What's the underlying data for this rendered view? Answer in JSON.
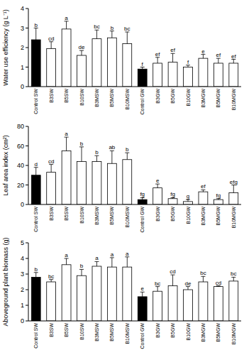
{
  "chart_data": [
    {
      "type": "bar",
      "y_label": "Water use efficiency (g L⁻¹)",
      "categories": [
        "Control SW",
        "B3SW",
        "B5SW",
        "B10SW",
        "B3MSW",
        "B5MSW",
        "B10MSW",
        "Control GW",
        "B3GW",
        "B5GW",
        "B10GW",
        "B3MGW",
        "B5MGW",
        "B10MGW"
      ],
      "values": [
        2.4,
        1.95,
        2.95,
        1.6,
        2.45,
        2.5,
        2.2,
        0.9,
        1.2,
        1.25,
        1.0,
        1.45,
        1.2,
        1.2
      ],
      "errors": [
        0.6,
        0.35,
        0.4,
        0.25,
        0.45,
        0.35,
        0.6,
        0.1,
        0.3,
        0.45,
        0.1,
        0.2,
        0.25,
        0.2
      ],
      "letters": [
        "b",
        "cd",
        "a",
        "de",
        "bc",
        "b",
        "bc",
        "f",
        "ef",
        "ef",
        "f",
        "e",
        "ef",
        "ef"
      ],
      "colors": [
        "#000000",
        "#ffffff",
        "#ffffff",
        "#ffffff",
        "#ffffff",
        "#ffffff",
        "#ffffff",
        "#000000",
        "#ffffff",
        "#ffffff",
        "#ffffff",
        "#ffffff",
        "#ffffff",
        "#ffffff"
      ],
      "ylim": [
        0,
        4
      ],
      "yticks": [
        0,
        1,
        2,
        3,
        4
      ],
      "grid": false
    },
    {
      "type": "bar",
      "y_label": "Leaf area index (cm²)",
      "categories": [
        "Control SW",
        "B3SW",
        "B5SW",
        "B10SW",
        "B3MSW",
        "B5MSW",
        "B10MSW",
        "Control GW",
        "B3GW",
        "B5GW",
        "B10GW",
        "B3MGW",
        "B5MGW",
        "B10MGW"
      ],
      "values": [
        30,
        33,
        55,
        44,
        44,
        42,
        46,
        5,
        17,
        6,
        3,
        13,
        5,
        12
      ],
      "errors": [
        8,
        8,
        14,
        15,
        6,
        13,
        7,
        2,
        4,
        1,
        2,
        2,
        1,
        8
      ],
      "letters": [
        "d",
        "cd",
        "a",
        "b",
        "b",
        "ab",
        "b",
        "fg",
        "e",
        "fg",
        "g",
        "ef",
        "fg",
        "efg"
      ],
      "colors": [
        "#000000",
        "#ffffff",
        "#ffffff",
        "#ffffff",
        "#ffffff",
        "#ffffff",
        "#ffffff",
        "#000000",
        "#ffffff",
        "#ffffff",
        "#ffffff",
        "#ffffff",
        "#ffffff",
        "#ffffff"
      ],
      "ylim": [
        0,
        80
      ],
      "yticks": [
        0,
        20,
        40,
        60,
        80
      ],
      "grid": false
    },
    {
      "type": "bar",
      "y_label": "Aboveground plant biomass (g)",
      "categories": [
        "Control SW",
        "B3SW",
        "B5SW",
        "B10SW",
        "B3MSW",
        "B5MSW",
        "B10MSW",
        "Control GW",
        "B3GW",
        "B5GW",
        "B10GW",
        "B3MGW",
        "B5MGW",
        "B10MGW"
      ],
      "values": [
        2.8,
        2.5,
        3.6,
        2.9,
        3.5,
        3.45,
        3.45,
        1.55,
        1.9,
        2.25,
        2.0,
        2.5,
        2.2,
        2.55
      ],
      "errors": [
        0.3,
        0.15,
        0.4,
        0.4,
        0.3,
        0.6,
        0.65,
        0.3,
        0.3,
        0.7,
        0.2,
        0.35,
        0.05,
        0.25
      ],
      "letters": [
        "b",
        "bc",
        "a",
        "b",
        "a",
        "a",
        "a",
        "e",
        "bc",
        "cd",
        "de",
        "bc",
        "cd",
        "bc"
      ],
      "colors": [
        "#000000",
        "#ffffff",
        "#ffffff",
        "#ffffff",
        "#ffffff",
        "#ffffff",
        "#ffffff",
        "#000000",
        "#ffffff",
        "#ffffff",
        "#ffffff",
        "#ffffff",
        "#ffffff",
        "#ffffff"
      ],
      "ylim": [
        0,
        5
      ],
      "yticks": [
        0,
        1,
        2,
        3,
        4,
        5
      ],
      "grid": false
    }
  ]
}
